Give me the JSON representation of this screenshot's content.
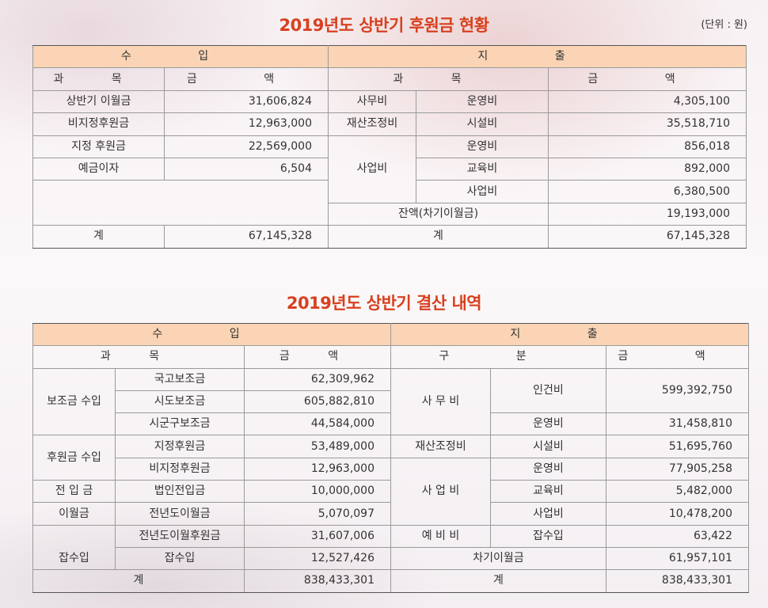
{
  "summary": {
    "title": "2019년도 상반기 후원금 현황",
    "unit": "(단위 : 원)",
    "income_header": "수 입",
    "expense_header": "지 출",
    "col_subject": "과 목",
    "col_amount": "금 액",
    "income": [
      {
        "subject": "상반기 이월금",
        "amount": "31,606,824"
      },
      {
        "subject": "비지정후원금",
        "amount": "12,963,000"
      },
      {
        "subject": "지정 후원금",
        "amount": "22,569,000"
      },
      {
        "subject": "예금이자",
        "amount": "6,504"
      }
    ],
    "expense": {
      "office": {
        "group": "사무비",
        "item": "운영비",
        "amount": "4,305,100"
      },
      "asset": {
        "group": "재산조정비",
        "item": "시설비",
        "amount": "35,518,710"
      },
      "project_group": "사업비",
      "project": [
        {
          "item": "운영비",
          "amount": "856,018"
        },
        {
          "item": "교육비",
          "amount": "892,000"
        },
        {
          "item": "사업비",
          "amount": "6,380,500"
        }
      ],
      "balance_label": "잔액(차기이월금)",
      "balance_amount": "19,193,000"
    },
    "total_label": "계",
    "income_total": "67,145,328",
    "expense_total": "67,145,328"
  },
  "settlement": {
    "title": "2019년도 상반기 결산 내역",
    "income_header": "수 입",
    "expense_header": "지 출",
    "col_subject": "과 목",
    "col_amount": "금 액",
    "col_category": "구 분",
    "income": {
      "subsidy_group": "보조금 수입",
      "subsidy": [
        {
          "item": "국고보조금",
          "amount": "62,309,962"
        },
        {
          "item": "시도보조금",
          "amount": "605,882,810"
        },
        {
          "item": "시군구보조금",
          "amount": "44,584,000"
        }
      ],
      "donation_group": "후원금 수입",
      "donation": [
        {
          "item": "지정후원금",
          "amount": "53,489,000"
        },
        {
          "item": "비지정후원금",
          "amount": "12,963,000"
        }
      ],
      "transfer_group": "전 입 금",
      "transfer": {
        "item": "법인전입금",
        "amount": "10,000,000"
      },
      "carry_group": "이월금",
      "carry": [
        {
          "item": "전년도이월금",
          "amount": "5,070,097"
        },
        {
          "item": "전년도이월후원금",
          "amount": "31,607,006"
        }
      ],
      "misc_group": "잡수입",
      "misc": {
        "item": "잡수입",
        "amount": "12,527,426"
      }
    },
    "expense": {
      "office_group": "사 무 비",
      "office": [
        {
          "item": "인건비",
          "amount": "599,392,750"
        },
        {
          "item": "운영비",
          "amount": "31,458,810"
        }
      ],
      "asset_group": "재산조정비",
      "asset": {
        "item": "시설비",
        "amount": "51,695,760"
      },
      "project_group": "사 업 비",
      "project": [
        {
          "item": "운영비",
          "amount": "77,905,258"
        },
        {
          "item": "교육비",
          "amount": "5,482,000"
        },
        {
          "item": "사업비",
          "amount": "10,478,200"
        }
      ],
      "reserve_group": "예 비 비",
      "reserve": {
        "item": "잡수입",
        "amount": "63,422"
      },
      "carryover_label": "차기이월금",
      "carryover_amount": "61,957,101"
    },
    "total_label": "계",
    "income_total": "838,433,301",
    "expense_total": "838,433,301"
  }
}
